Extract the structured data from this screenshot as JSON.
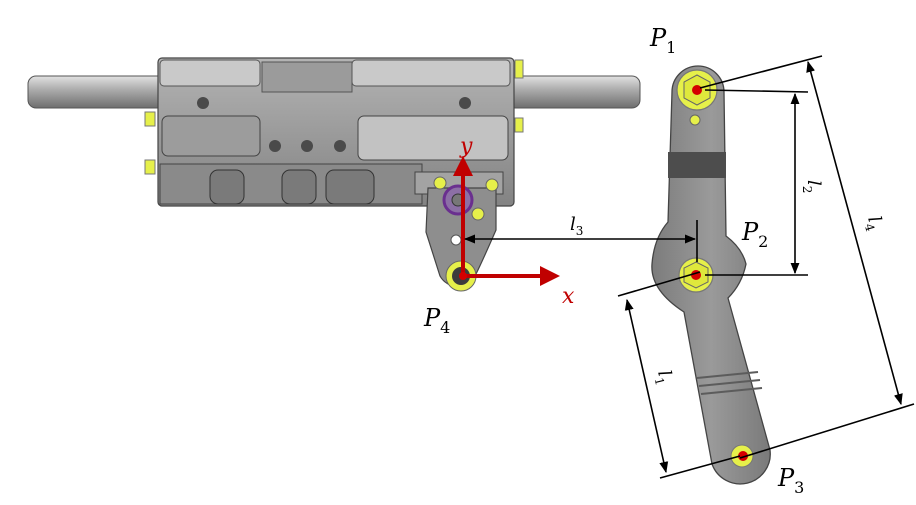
{
  "labels": {
    "p1": {
      "main": "P",
      "sub": "1"
    },
    "p2": {
      "main": "P",
      "sub": "2"
    },
    "p3": {
      "main": "P",
      "sub": "3"
    },
    "p4": {
      "main": "P",
      "sub": "4"
    },
    "l1": {
      "main": "l",
      "sub": "1"
    },
    "l2": {
      "main": "l",
      "sub": "2"
    },
    "l3": {
      "main": "l",
      "sub": "3"
    },
    "l4": {
      "main": "l",
      "sub": "4"
    },
    "x_axis": "x",
    "y_axis": "y"
  },
  "colors": {
    "part_body": "#8d8d8d",
    "part_dark": "#5f5f5f",
    "part_light": "#c6c6c6",
    "bolt_yellow": "#e6f04a",
    "joint_red": "#d40000",
    "axis_red": "#c00000",
    "dimension_line": "#000000"
  }
}
